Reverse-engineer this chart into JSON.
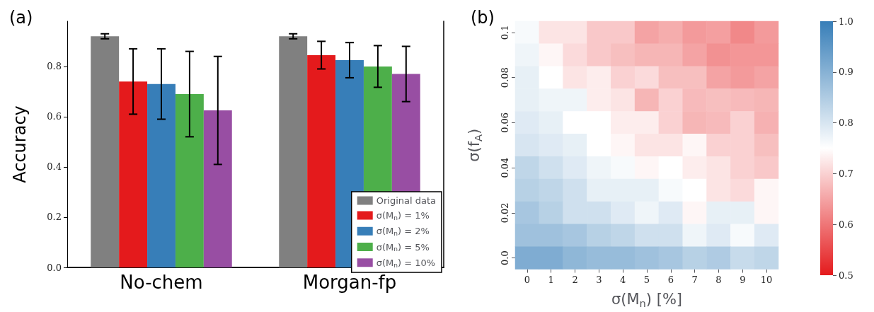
{
  "chart_data": [
    {
      "type": "bar",
      "title": "(a)",
      "ylabel": "Accuracy",
      "categories": [
        "No-chem",
        "Morgan-fp"
      ],
      "series": [
        {
          "name": "Original data",
          "color": "#808080",
          "values": [
            0.92,
            0.92
          ],
          "errors": [
            0.01,
            0.01
          ]
        },
        {
          "name": "σ(M$_{n}$) = 1%",
          "color": "#e41a1c",
          "values": [
            0.74,
            0.845
          ],
          "errors": [
            0.13,
            0.055
          ]
        },
        {
          "name": "σ(M$_{n}$) = 2%",
          "color": "#377eb8",
          "values": [
            0.73,
            0.825
          ],
          "errors": [
            0.14,
            0.07
          ]
        },
        {
          "name": "σ(M$_{n}$) = 5%",
          "color": "#4daf4a",
          "values": [
            0.69,
            0.8
          ],
          "errors": [
            0.17,
            0.083
          ]
        },
        {
          "name": "σ(M$_{n}$) = 10%",
          "color": "#984ea3",
          "values": [
            0.625,
            0.77
          ],
          "errors": [
            0.215,
            0.11
          ]
        }
      ],
      "ylim": [
        0,
        0.98
      ],
      "yticks": [
        {
          "value": 0,
          "label": "0.0"
        },
        0.2,
        0.4,
        0.6,
        0.8
      ],
      "grid": false,
      "legend": "bottom right"
    },
    {
      "type": "heatmap",
      "title": "(b)",
      "xlabel": "σ(M$_{n}$) [%]",
      "ylabel": "σ(f$_{A}$)",
      "categories": [
        "0",
        "1",
        "2",
        "3",
        "4",
        "5",
        "6",
        "7",
        "8",
        "9",
        "10"
      ],
      "y_categories": [
        "0.1",
        null,
        "0.08",
        null,
        "0.06",
        null,
        "0.04",
        null,
        "0.02",
        null,
        "0.0"
      ],
      "cells": [
        [
          0.76,
          0.72,
          0.72,
          0.69,
          0.69,
          0.65,
          0.66,
          0.64,
          0.645,
          0.62,
          0.64
        ],
        [
          0.77,
          0.74,
          0.71,
          0.69,
          0.68,
          0.67,
          0.67,
          0.65,
          0.63,
          0.635,
          0.635
        ],
        [
          0.78,
          0.75,
          0.72,
          0.73,
          0.7,
          0.71,
          0.68,
          0.68,
          0.65,
          0.64,
          0.65
        ],
        [
          0.78,
          0.77,
          0.77,
          0.73,
          0.72,
          0.67,
          0.7,
          0.675,
          0.68,
          0.675,
          0.67
        ],
        [
          0.79,
          0.78,
          0.75,
          0.75,
          0.73,
          0.73,
          0.7,
          0.67,
          0.675,
          0.7,
          0.665
        ],
        [
          0.8,
          0.79,
          0.78,
          0.75,
          0.74,
          0.72,
          0.72,
          0.74,
          0.7,
          0.7,
          0.68
        ],
        [
          0.83,
          0.81,
          0.79,
          0.77,
          0.76,
          0.74,
          0.75,
          0.73,
          0.72,
          0.7,
          0.69
        ],
        [
          0.84,
          0.83,
          0.81,
          0.78,
          0.78,
          0.78,
          0.76,
          0.75,
          0.72,
          0.71,
          0.74
        ],
        [
          0.86,
          0.84,
          0.81,
          0.81,
          0.79,
          0.77,
          0.79,
          0.74,
          0.78,
          0.78,
          0.74
        ],
        [
          0.87,
          0.87,
          0.86,
          0.84,
          0.83,
          0.81,
          0.81,
          0.77,
          0.79,
          0.76,
          0.79
        ],
        [
          0.91,
          0.91,
          0.89,
          0.88,
          0.88,
          0.87,
          0.86,
          0.84,
          0.85,
          0.82,
          0.83
        ]
      ],
      "clim": [
        0.5,
        1.0
      ],
      "cticks": [
        0.5,
        0.6,
        0.7,
        0.8,
        0.9,
        {
          "value": 1.0,
          "label": "1.0"
        }
      ]
    }
  ]
}
